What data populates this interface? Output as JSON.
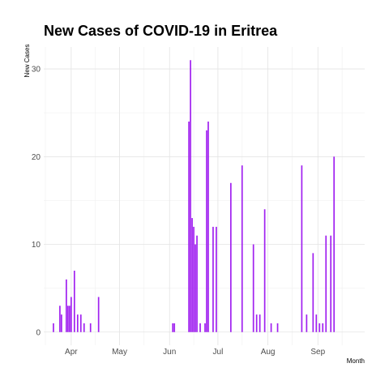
{
  "chart_data": {
    "type": "bar",
    "title": "New Cases of COVID-19 in Eritrea",
    "xlabel": "Month",
    "ylabel": "New Cases",
    "x_tick_labels": [
      "Apr",
      "May",
      "Jun",
      "Jul",
      "Aug",
      "Sep"
    ],
    "y_ticks": [
      0,
      10,
      20,
      30
    ],
    "ylim": [
      -1.5,
      32.5
    ],
    "x_range": [
      "2020-03-15",
      "2020-09-30"
    ],
    "grid": true,
    "bar_color": "#a020f0",
    "series": [
      {
        "x": [
          "2020-03-21",
          "2020-03-25",
          "2020-03-26",
          "2020-03-29",
          "2020-03-30",
          "2020-03-31",
          "2020-04-01",
          "2020-04-03",
          "2020-04-05",
          "2020-04-07",
          "2020-04-09",
          "2020-04-13",
          "2020-04-18",
          "2020-06-03",
          "2020-06-04",
          "2020-06-13",
          "2020-06-14",
          "2020-06-15",
          "2020-06-16",
          "2020-06-17",
          "2020-06-18",
          "2020-06-20",
          "2020-06-23",
          "2020-06-24",
          "2020-06-25",
          "2020-06-28",
          "2020-06-30",
          "2020-07-09",
          "2020-07-16",
          "2020-07-23",
          "2020-07-25",
          "2020-07-27",
          "2020-07-30",
          "2020-08-03",
          "2020-08-07",
          "2020-08-22",
          "2020-08-25",
          "2020-08-29",
          "2020-08-31",
          "2020-09-02",
          "2020-09-04",
          "2020-09-06",
          "2020-09-09",
          "2020-09-11"
        ],
        "values": [
          1,
          3,
          2,
          6,
          3,
          3,
          4,
          7,
          2,
          2,
          1,
          1,
          4,
          1,
          1,
          24,
          31,
          13,
          12,
          10,
          11,
          1,
          1,
          23,
          24,
          12,
          12,
          17,
          19,
          10,
          2,
          2,
          14,
          1,
          1,
          19,
          2,
          9,
          2,
          1,
          1,
          11,
          11,
          20
        ]
      }
    ]
  }
}
